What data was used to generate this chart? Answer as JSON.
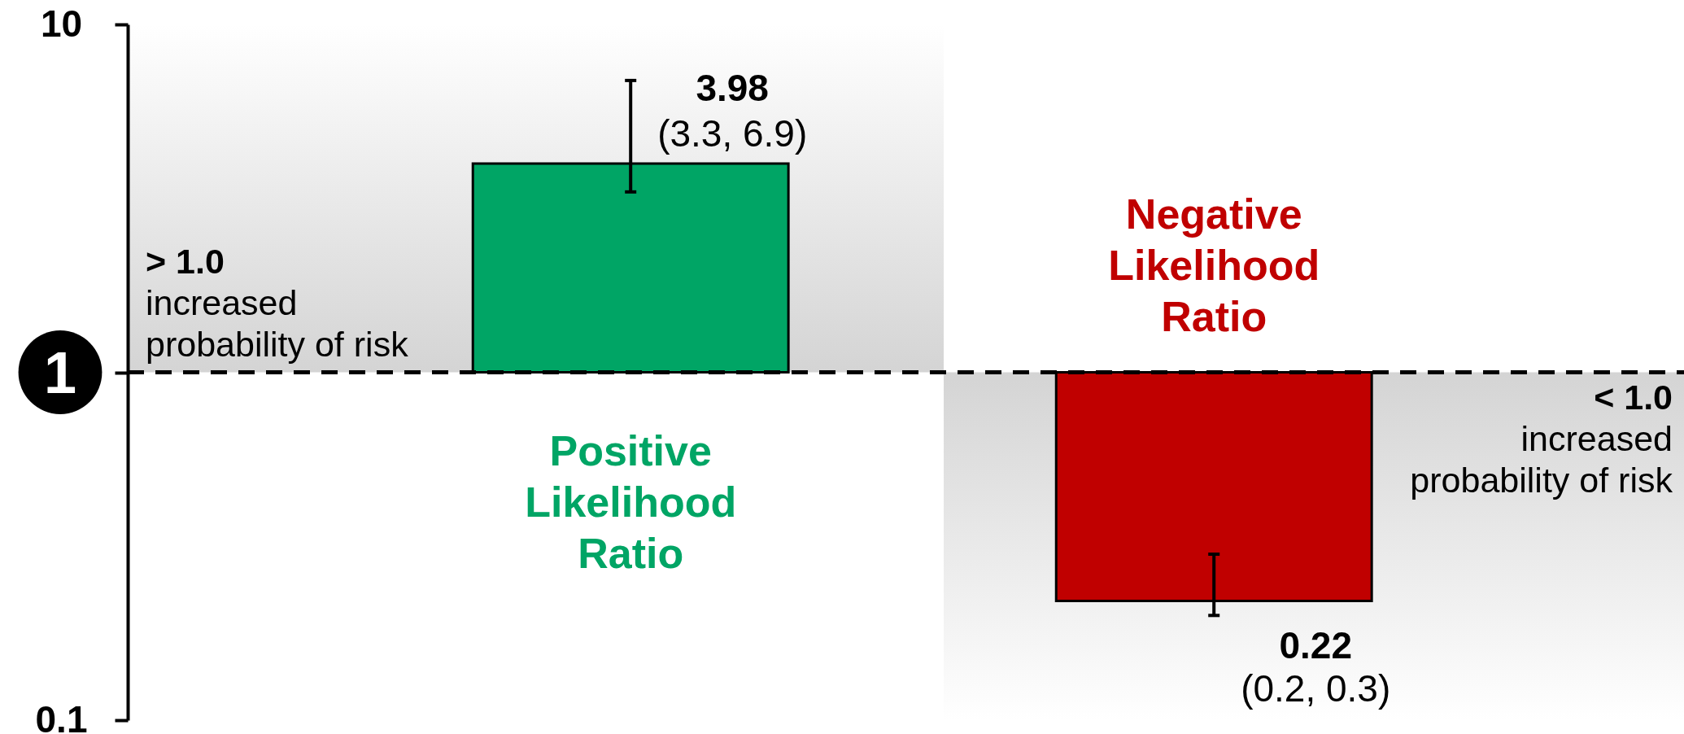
{
  "chart_data": {
    "type": "bar",
    "categories": [
      "Positive Likelihood Ratio",
      "Negative Likelihood Ratio"
    ],
    "base": [
      1,
      1
    ],
    "values": [
      2.98,
      -0.78
    ],
    "colors": [
      "#00a565",
      "#c00000"
    ],
    "value_labels": [
      "3.98",
      "0.22"
    ],
    "errors": [
      [
        3.3,
        6.9
      ],
      [
        0.2,
        0.3
      ]
    ],
    "annotations": [
      "(3.3, 6.9)",
      "(0.2, 0.3)"
    ],
    "log": "y",
    "ylim": [
      0.1,
      10
    ],
    "yticks": [
      0.1,
      {
        "value": 1,
        "label": null
      },
      10
    ],
    "ref_lines": [
      {
        "axis": "y",
        "value": 1,
        "label": "1",
        "color": "#000000",
        "line_style": "dashed"
      }
    ],
    "bands": [
      {
        "axis": "y",
        "from": 1,
        "to": 10,
        "label": "> 1.0\nincreased\nprobability of risk",
        "color": "#d4d4d4"
      },
      {
        "axis": "y",
        "from": 1,
        "to": 0.1,
        "label": "< 1.0\nincreased\nprobability of risk",
        "color": "#d4d4d4"
      }
    ]
  }
}
